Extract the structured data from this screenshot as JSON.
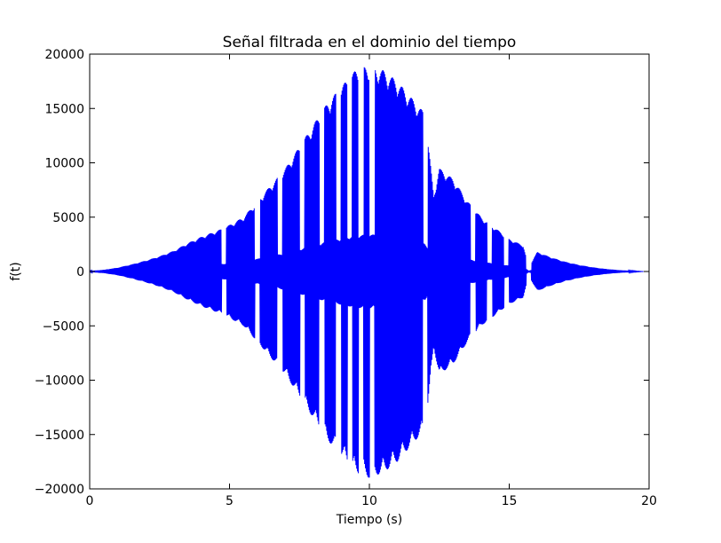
{
  "chart_data": {
    "type": "line",
    "title": "Señal filtrada en el dominio del tiempo",
    "xlabel": "Tiempo (s)",
    "ylabel": "f(t)",
    "xlim": [
      0,
      20
    ],
    "ylim": [
      -20000,
      20000
    ],
    "x_ticks": [
      0,
      5,
      10,
      15,
      20
    ],
    "x_tick_labels": [
      "0",
      "5",
      "10",
      "15",
      "20"
    ],
    "y_ticks": [
      -20000,
      -15000,
      -10000,
      -5000,
      0,
      5000,
      10000,
      15000,
      20000
    ],
    "y_tick_labels": [
      "−20000",
      "−15000",
      "−10000",
      "−5000",
      "0",
      "5000",
      "10000",
      "15000",
      "20000"
    ],
    "grid": false,
    "series": [
      {
        "color": "#0000ff",
        "x_range": [
          0,
          19.8
        ],
        "envelope": {
          "t": [
            0,
            0.5,
            1,
            1.5,
            2,
            2.5,
            3,
            3.5,
            4,
            4.5,
            4.8,
            5.5,
            6,
            6.5,
            7,
            7.5,
            8,
            8.5,
            9,
            9.5,
            10,
            10.5,
            11,
            11.5,
            12,
            12.3,
            12.5,
            13,
            13.5,
            14,
            14.5,
            15,
            15.5,
            15.7,
            16,
            16.5,
            17,
            17.5,
            18,
            18.5,
            19,
            19.5,
            19.8
          ],
          "amplitude": [
            50,
            150,
            350,
            650,
            1000,
            1400,
            1900,
            2600,
            3200,
            3700,
            4000,
            5000,
            6500,
            8000,
            9500,
            11500,
            13500,
            15500,
            17000,
            18500,
            19000,
            18500,
            17500,
            16000,
            14500,
            7000,
            9500,
            8500,
            6500,
            5000,
            4000,
            3000,
            2400,
            400,
            1800,
            1300,
            900,
            600,
            380,
            220,
            110,
            40,
            0
          ]
        },
        "gaps_s": [
          4.8,
          6.0,
          6.8,
          7.6,
          8.3,
          8.9,
          9.3,
          9.7,
          10.1,
          12.0,
          13.7,
          14.3,
          14.9,
          15.7
        ]
      }
    ]
  }
}
